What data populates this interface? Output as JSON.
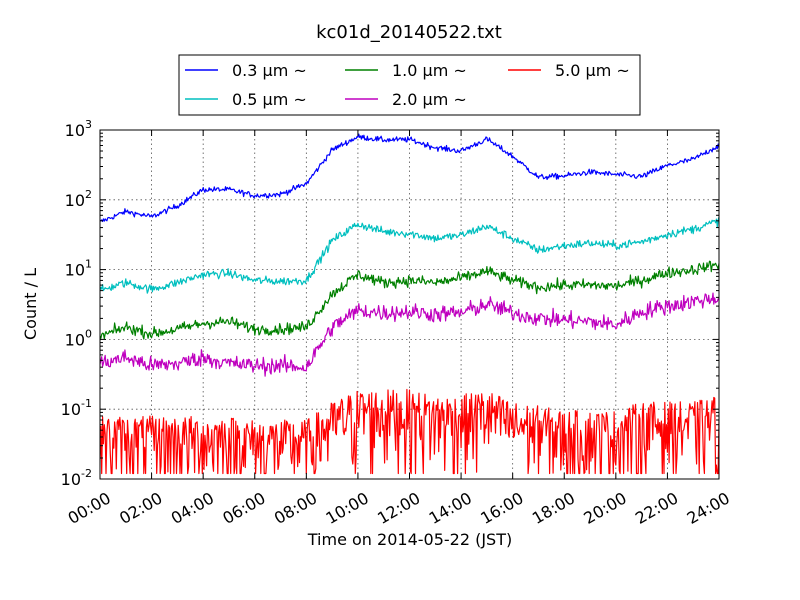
{
  "chart_data": {
    "type": "line",
    "title": "kc01d_20140522.txt",
    "xlabel": "Time on 2014-05-22 (JST)",
    "ylabel": "Count / L",
    "yscale": "log",
    "xlim": [
      "00:00",
      "24:00"
    ],
    "ylim": [
      0.01,
      1000
    ],
    "grid": true,
    "legend_position": "top-center",
    "x_tick_labels": [
      "00:00",
      "02:00",
      "04:00",
      "06:00",
      "08:00",
      "10:00",
      "12:00",
      "14:00",
      "16:00",
      "18:00",
      "20:00",
      "22:00",
      "24:00"
    ],
    "y_tick_labels": [
      {
        "base": "10",
        "exp": "-2"
      },
      {
        "base": "10",
        "exp": "-1"
      },
      {
        "base": "10",
        "exp": "0"
      },
      {
        "base": "10",
        "exp": "1"
      },
      {
        "base": "10",
        "exp": "2"
      },
      {
        "base": "10",
        "exp": "3"
      }
    ],
    "x_hours": [
      0,
      1,
      2,
      3,
      4,
      5,
      6,
      7,
      8,
      9,
      10,
      11,
      12,
      13,
      14,
      15,
      16,
      17,
      18,
      19,
      20,
      21,
      22,
      23,
      24
    ],
    "series": [
      {
        "name": "0.3 μm ~",
        "color": "#0000ff",
        "noise": 0.02,
        "values": [
          48,
          68,
          57,
          82,
          140,
          140,
          115,
          120,
          170,
          520,
          800,
          720,
          730,
          560,
          500,
          740,
          420,
          210,
          220,
          250,
          230,
          215,
          310,
          380,
          600
        ]
      },
      {
        "name": "0.5 μm ~",
        "color": "#00bfbf",
        "noise": 0.03,
        "values": [
          5,
          6.5,
          5.2,
          6.5,
          8.5,
          8.8,
          7,
          6.8,
          7,
          26,
          45,
          35,
          33,
          28,
          31,
          42,
          28,
          19,
          22,
          24,
          22,
          25,
          32,
          38,
          50
        ]
      },
      {
        "name": "1.0 μm ~",
        "color": "#008000",
        "noise": 0.04,
        "values": [
          1.1,
          1.5,
          1.2,
          1.4,
          1.7,
          1.8,
          1.4,
          1.4,
          1.5,
          4.5,
          8.5,
          6.5,
          7,
          6.5,
          7.5,
          9.5,
          7,
          5.6,
          6,
          6,
          5.8,
          7,
          9,
          10,
          12
        ]
      },
      {
        "name": "2.0 μm ~",
        "color": "#bf00bf",
        "noise": 0.06,
        "values": [
          0.45,
          0.55,
          0.42,
          0.45,
          0.55,
          0.45,
          0.42,
          0.42,
          0.4,
          1.5,
          2.6,
          2.4,
          2.5,
          2.3,
          2.4,
          3.2,
          2.4,
          2.0,
          1.9,
          1.8,
          1.6,
          2.5,
          3,
          3.5,
          4
        ]
      },
      {
        "name": "5.0 μm ~",
        "color": "#ff0000",
        "noise": 0.35,
        "values": [
          0.025,
          0.025,
          0.025,
          0.025,
          0.025,
          0.025,
          0.022,
          0.022,
          0.022,
          0.04,
          0.06,
          0.06,
          0.06,
          0.05,
          0.05,
          0.06,
          0.04,
          0.035,
          0.03,
          0.03,
          0.03,
          0.04,
          0.04,
          0.04,
          0.05
        ]
      }
    ]
  }
}
